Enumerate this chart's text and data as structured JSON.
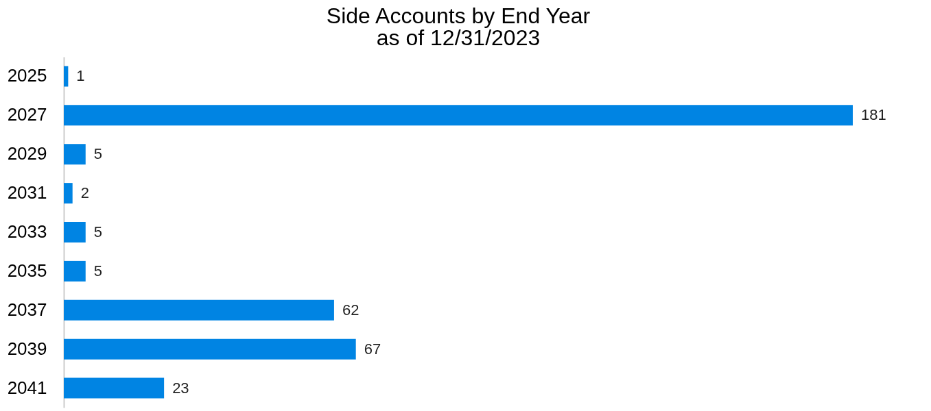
{
  "chart_data": {
    "type": "bar",
    "orientation": "horizontal",
    "title": "Side Accounts by End Year",
    "subtitle": "as of 12/31/2023",
    "categories": [
      "2025",
      "2027",
      "2029",
      "2031",
      "2033",
      "2035",
      "2037",
      "2039",
      "2041"
    ],
    "values": [
      1,
      181,
      5,
      2,
      5,
      5,
      62,
      67,
      23
    ],
    "color": "#0084e3",
    "data_labels": true,
    "grid": false
  }
}
